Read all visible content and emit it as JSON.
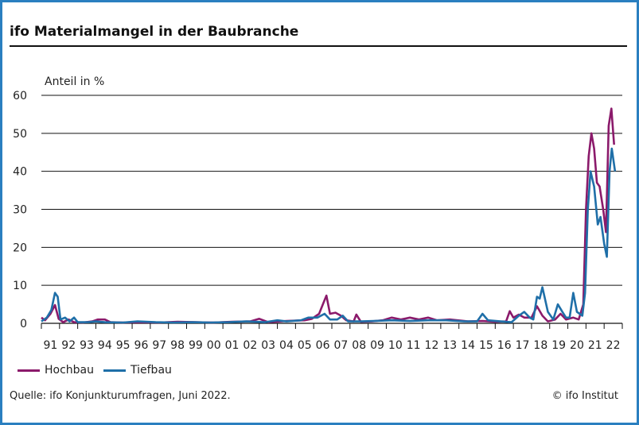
{
  "title": "ifo Materialmangel in der Baubranche",
  "source": "Quelle: ifo Konjunkturumfragen, Juni 2022.",
  "copyright": "© ifo Institut",
  "chart_data": {
    "type": "line",
    "title": "ifo Materialmangel in der Baubranche",
    "ylabel": "Anteil in %",
    "xlabel": "",
    "ylim": [
      0,
      60
    ],
    "yticks": [
      0,
      10,
      20,
      30,
      40,
      50,
      60
    ],
    "xlim": [
      1991,
      2023
    ],
    "xtick_labels": [
      "91",
      "92",
      "93",
      "94",
      "95",
      "96",
      "97",
      "98",
      "99",
      "00",
      "01",
      "02",
      "03",
      "04",
      "05",
      "06",
      "07",
      "08",
      "09",
      "10",
      "11",
      "12",
      "13",
      "14",
      "15",
      "16",
      "17",
      "18",
      "19",
      "20",
      "21",
      "22"
    ],
    "grid": true,
    "legend_position": "bottom-left",
    "series": [
      {
        "name": "Hochbau",
        "color": "#8b1a6b",
        "points": [
          [
            1991.0,
            1.5
          ],
          [
            1991.2,
            0.8
          ],
          [
            1991.5,
            2.5
          ],
          [
            1991.75,
            4.8
          ],
          [
            1991.95,
            1.2
          ],
          [
            1992.2,
            0.3
          ],
          [
            1992.5,
            1
          ],
          [
            1992.8,
            0.3
          ],
          [
            1993.3,
            0.2
          ],
          [
            1993.8,
            0.5
          ],
          [
            1994.1,
            1
          ],
          [
            1994.5,
            1
          ],
          [
            1994.8,
            0.3
          ],
          [
            1995.5,
            0.2
          ],
          [
            1996.5,
            0.3
          ],
          [
            1997.5,
            0.2
          ],
          [
            1998.5,
            0.4
          ],
          [
            1999.5,
            0.3
          ],
          [
            2000.5,
            0.2
          ],
          [
            2001.5,
            0.4
          ],
          [
            2002.5,
            0.5
          ],
          [
            2003.0,
            1.2
          ],
          [
            2003.5,
            0.3
          ],
          [
            2004.5,
            0.6
          ],
          [
            2005.5,
            0.8
          ],
          [
            2005.9,
            1.2
          ],
          [
            2006.3,
            2.5
          ],
          [
            2006.55,
            5.5
          ],
          [
            2006.7,
            7.3
          ],
          [
            2006.9,
            2.5
          ],
          [
            2007.2,
            2.8
          ],
          [
            2007.5,
            2
          ],
          [
            2007.8,
            0.8
          ],
          [
            2008.2,
            0.5
          ],
          [
            2008.35,
            2.3
          ],
          [
            2008.6,
            0.4
          ],
          [
            2009.2,
            0.5
          ],
          [
            2009.8,
            0.8
          ],
          [
            2010.3,
            1.5
          ],
          [
            2010.8,
            1
          ],
          [
            2011.3,
            1.5
          ],
          [
            2011.8,
            1
          ],
          [
            2012.3,
            1.5
          ],
          [
            2012.8,
            0.8
          ],
          [
            2013.5,
            1
          ],
          [
            2014.5,
            0.5
          ],
          [
            2015.3,
            0.6
          ],
          [
            2016.0,
            0.4
          ],
          [
            2016.6,
            0.5
          ],
          [
            2016.8,
            3.2
          ],
          [
            2017.0,
            1.5
          ],
          [
            2017.3,
            2.3
          ],
          [
            2017.6,
            1.5
          ],
          [
            2018.0,
            1.5
          ],
          [
            2018.3,
            4.5
          ],
          [
            2018.6,
            2
          ],
          [
            2018.9,
            0.5
          ],
          [
            2019.3,
            1
          ],
          [
            2019.6,
            2.5
          ],
          [
            2019.9,
            1
          ],
          [
            2020.3,
            1.5
          ],
          [
            2020.6,
            1
          ],
          [
            2020.85,
            5
          ],
          [
            2021.0,
            30
          ],
          [
            2021.15,
            44
          ],
          [
            2021.3,
            50
          ],
          [
            2021.45,
            46
          ],
          [
            2021.6,
            37
          ],
          [
            2021.75,
            36
          ],
          [
            2021.95,
            30
          ],
          [
            2022.1,
            24
          ],
          [
            2022.25,
            52
          ],
          [
            2022.4,
            56.5
          ],
          [
            2022.55,
            47
          ]
        ]
      },
      {
        "name": "Tiefbau",
        "color": "#1f6fa8",
        "points": [
          [
            1991.0,
            0.5
          ],
          [
            1991.3,
            1.5
          ],
          [
            1991.55,
            3.5
          ],
          [
            1991.75,
            8
          ],
          [
            1991.9,
            7
          ],
          [
            1992.05,
            1
          ],
          [
            1992.3,
            1.5
          ],
          [
            1992.55,
            0.5
          ],
          [
            1992.8,
            1.5
          ],
          [
            1993.0,
            0.3
          ],
          [
            1993.6,
            0.3
          ],
          [
            1994.0,
            0.5
          ],
          [
            1994.5,
            0.3
          ],
          [
            1995.5,
            0.2
          ],
          [
            1996.3,
            0.5
          ],
          [
            1997.3,
            0.3
          ],
          [
            1998.3,
            0.2
          ],
          [
            1999.3,
            0.3
          ],
          [
            2000.3,
            0.2
          ],
          [
            2001.3,
            0.3
          ],
          [
            2002.3,
            0.5
          ],
          [
            2003.3,
            0.3
          ],
          [
            2004.0,
            0.8
          ],
          [
            2004.5,
            0.5
          ],
          [
            2005.3,
            0.8
          ],
          [
            2005.7,
            1.5
          ],
          [
            2006.2,
            1.5
          ],
          [
            2006.6,
            2.5
          ],
          [
            2006.9,
            1
          ],
          [
            2007.3,
            1
          ],
          [
            2007.6,
            2
          ],
          [
            2007.9,
            0.5
          ],
          [
            2008.6,
            0.5
          ],
          [
            2009.3,
            0.6
          ],
          [
            2010.3,
            0.8
          ],
          [
            2011.3,
            0.6
          ],
          [
            2012.3,
            0.8
          ],
          [
            2013.3,
            0.8
          ],
          [
            2014.3,
            0.5
          ],
          [
            2015.0,
            0.5
          ],
          [
            2015.3,
            2.5
          ],
          [
            2015.6,
            0.8
          ],
          [
            2016.3,
            0.5
          ],
          [
            2016.9,
            0.3
          ],
          [
            2017.3,
            2
          ],
          [
            2017.6,
            3
          ],
          [
            2017.9,
            1.5
          ],
          [
            2018.1,
            1
          ],
          [
            2018.3,
            7
          ],
          [
            2018.45,
            6.5
          ],
          [
            2018.6,
            9.5
          ],
          [
            2018.9,
            3
          ],
          [
            2019.2,
            1
          ],
          [
            2019.45,
            5
          ],
          [
            2019.7,
            3
          ],
          [
            2019.9,
            1.5
          ],
          [
            2020.1,
            1.5
          ],
          [
            2020.3,
            8
          ],
          [
            2020.5,
            3
          ],
          [
            2020.8,
            2
          ],
          [
            2020.95,
            8
          ],
          [
            2021.1,
            30
          ],
          [
            2021.25,
            40
          ],
          [
            2021.45,
            36
          ],
          [
            2021.65,
            26
          ],
          [
            2021.8,
            28
          ],
          [
            2022.0,
            21
          ],
          [
            2022.15,
            17.5
          ],
          [
            2022.3,
            40
          ],
          [
            2022.42,
            46
          ],
          [
            2022.6,
            40
          ]
        ]
      }
    ]
  }
}
